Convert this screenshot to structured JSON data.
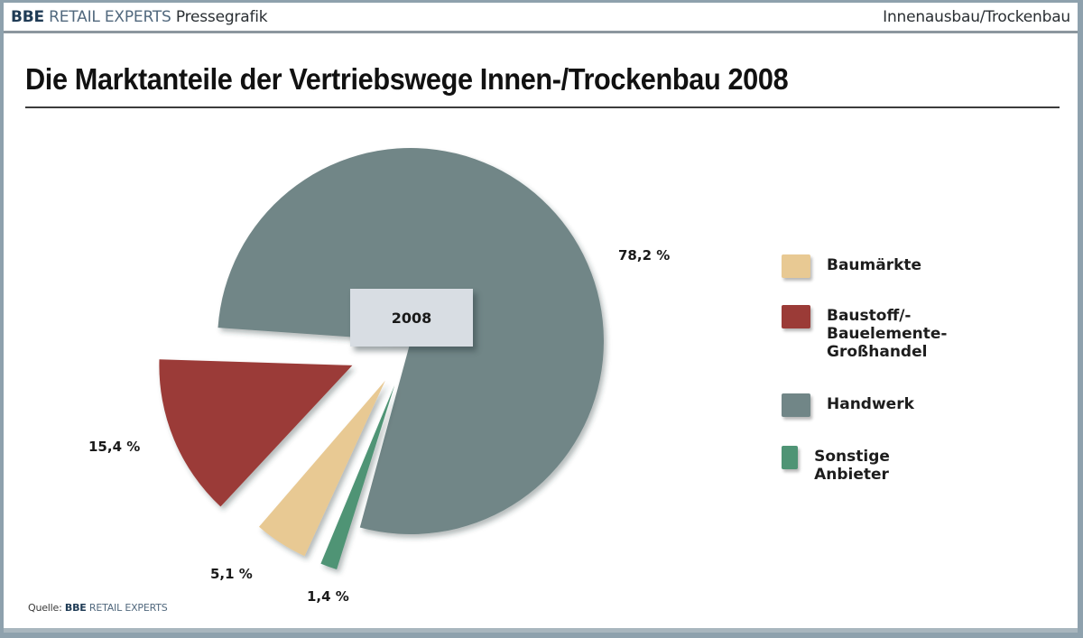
{
  "header": {
    "brand_bbe": "BBE",
    "brand_retail": "RETAIL EXPERTS",
    "brand_suffix": "Pressegrafik",
    "topic": "Innenausbau/Trockenbau"
  },
  "title": "Die Marktanteile der Vertriebswege Innen-/Trockenbau 2008",
  "center_label": "2008",
  "source": {
    "prefix": "Quelle:",
    "bbe": "BBE",
    "retail": "RETAIL EXPERTS"
  },
  "colors": {
    "baumaerkte": "#e8c993",
    "baustoff": "#9b3b37",
    "handwerk": "#718687",
    "sonstige": "#4f9475"
  },
  "chart_data": {
    "type": "pie",
    "title": "Die Marktanteile der Vertriebswege Innen-/Trockenbau 2008",
    "center_label": "2008",
    "categories": [
      "Baumärkte",
      "Baustoff/-Bauelemente-Großhandel",
      "Handwerk",
      "Sonstige Anbieter"
    ],
    "values": [
      5.1,
      15.4,
      78.2,
      1.4
    ],
    "value_labels": [
      "5,1 %",
      "15,4 %",
      "78,2 %",
      "1,4 %"
    ],
    "unit": "%",
    "legend_position": "right",
    "exploded": [
      "Baumärkte",
      "Baustoff/-Bauelemente-Großhandel",
      "Sonstige Anbieter"
    ],
    "source": "Quelle: BBE RETAIL EXPERTS"
  },
  "legend": [
    {
      "label": "Baumärkte",
      "color": "#e8c993"
    },
    {
      "label": "Baustoff/-\nBauelemente-\nGroßhandel",
      "color": "#9b3b37"
    },
    {
      "label": "Handwerk",
      "color": "#718687"
    },
    {
      "label": "Sonstige Anbieter",
      "color": "#4f9475"
    }
  ],
  "labels": {
    "handwerk": "78,2 %",
    "baustoff": "15,4 %",
    "baumaerkte": "5,1 %",
    "sonstige": "1,4 %"
  }
}
